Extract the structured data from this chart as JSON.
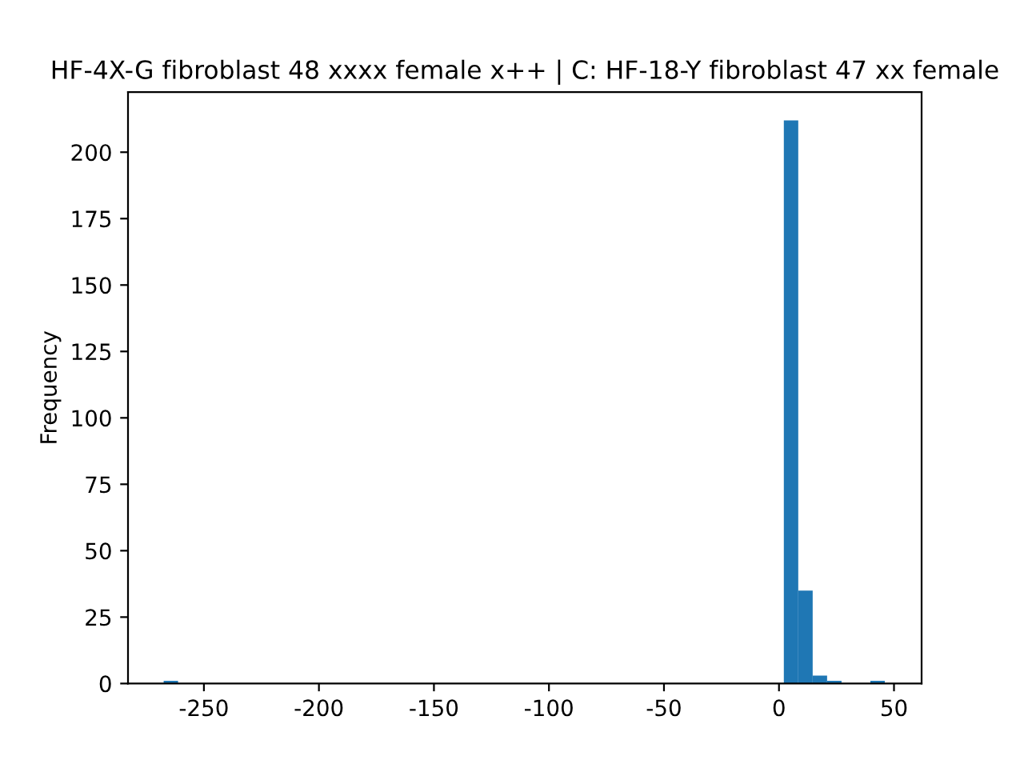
{
  "chart_data": {
    "type": "histogram",
    "title": "HF-4X-G fibroblast 48 xxxx female x++ | C: HF-18-Y fibroblast 47 xx female",
    "ylabel": "Frequency",
    "bins": [
      -267.5,
      -261.23,
      -254.96,
      -248.69,
      -242.42,
      -236.15,
      -229.88,
      -223.61,
      -217.34,
      -211.07,
      -204.8,
      -198.53,
      -192.26,
      -185.99,
      -179.72,
      -173.45,
      -167.18,
      -160.91,
      -154.64,
      -148.37,
      -142.1,
      -135.83,
      -129.56,
      -123.29,
      -117.02,
      -110.75,
      -104.48,
      -98.21,
      -91.94,
      -85.67,
      -79.4,
      -73.13,
      -66.86,
      -60.59,
      -54.32,
      -48.05,
      -41.78,
      -35.51,
      -29.24,
      -22.97,
      -16.7,
      -10.43,
      -4.16,
      2.11,
      8.38,
      14.65,
      20.92,
      27.19,
      33.46,
      39.73,
      46.0
    ],
    "values": [
      1,
      0,
      0,
      0,
      0,
      0,
      0,
      0,
      0,
      0,
      0,
      0,
      0,
      0,
      0,
      0,
      0,
      0,
      0,
      0,
      0,
      0,
      0,
      0,
      0,
      0,
      0,
      0,
      0,
      0,
      0,
      0,
      0,
      0,
      0,
      0,
      0,
      0,
      0,
      0,
      0,
      0,
      0,
      212,
      35,
      3,
      1,
      0,
      0,
      1
    ],
    "color": "#1f77b4",
    "xlim": [
      -283,
      62
    ],
    "xticks": [
      -250,
      -200,
      -150,
      -100,
      -50,
      0,
      50
    ],
    "ylim": [
      0,
      222.6
    ],
    "yticks": [
      0,
      25,
      50,
      75,
      100,
      125,
      150,
      175,
      200
    ],
    "grid": false
  }
}
